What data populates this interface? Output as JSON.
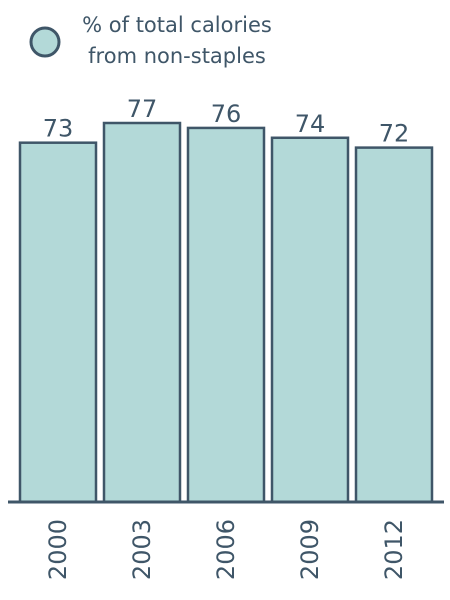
{
  "legend": {
    "line1": "% of total calories",
    "line2": "from non-staples"
  },
  "colors": {
    "bar_fill": "#b3d9d8",
    "bar_stroke": "#3f5668",
    "text": "#3f5668"
  },
  "chart_data": {
    "type": "bar",
    "categories": [
      "2000",
      "2003",
      "2006",
      "2009",
      "2012"
    ],
    "series": [
      {
        "name": "% of total calories from non-staples",
        "values": [
          73,
          77,
          76,
          74,
          72
        ]
      }
    ],
    "ylim": [
      0,
      77
    ],
    "grid": false,
    "legend_position": "top-left",
    "show_value_labels": true,
    "title": "",
    "xlabel": "",
    "ylabel": ""
  }
}
